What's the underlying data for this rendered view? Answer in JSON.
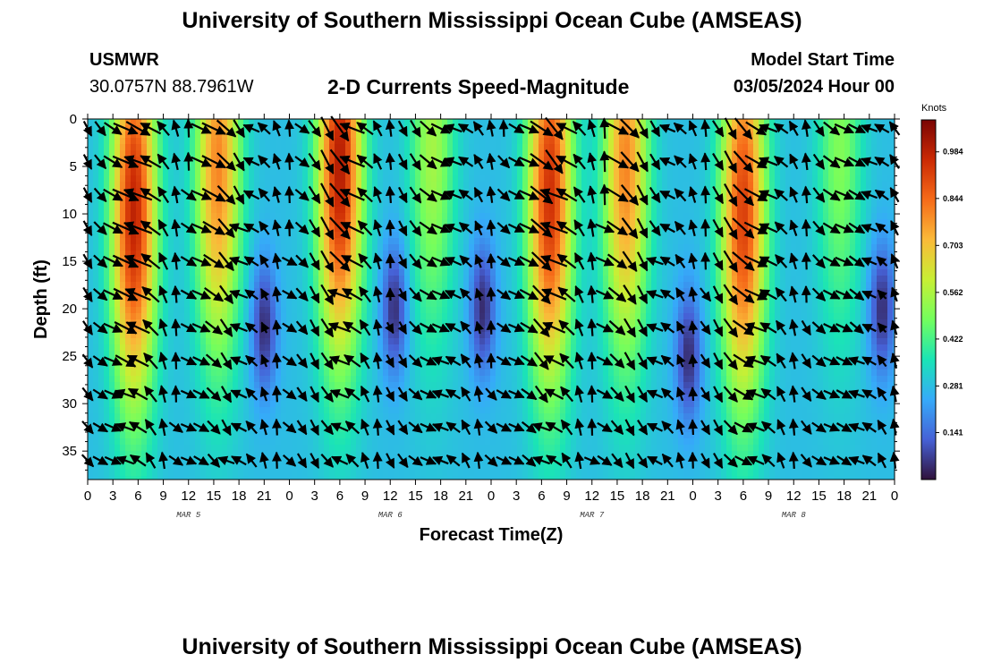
{
  "header": {
    "title": "University of Southern Mississippi Ocean Cube (AMSEAS)",
    "station": "USMWR",
    "coordinates": "30.0757N  88.7961W",
    "subtitle": "2-D Currents Speed-Magnitude",
    "model_start_label": "Model Start Time",
    "model_start_value": "03/05/2024 Hour 00"
  },
  "footer": {
    "title": "University of Southern Mississippi Ocean Cube (AMSEAS)"
  },
  "chart_data": {
    "type": "heatmap",
    "title": "2-D Currents Speed-Magnitude",
    "xlabel": "Forecast Time(Z)",
    "ylabel": "Depth (ft)",
    "x_range_hours": [
      0,
      96
    ],
    "y_range_ft": [
      0,
      38
    ],
    "x_tick_labels": [
      "0",
      "3",
      "6",
      "9",
      "12",
      "15",
      "18",
      "21",
      "0",
      "3",
      "6",
      "9",
      "12",
      "15",
      "18",
      "21",
      "0",
      "3",
      "6",
      "9",
      "12",
      "15",
      "18",
      "21",
      "0",
      "3",
      "6",
      "9",
      "12",
      "15",
      "18",
      "21",
      "0"
    ],
    "y_ticks": [
      0,
      5,
      10,
      15,
      20,
      25,
      30,
      35
    ],
    "date_labels": [
      {
        "hour": 12,
        "label": "MAR 5"
      },
      {
        "hour": 36,
        "label": "MAR 6"
      },
      {
        "hour": 60,
        "label": "MAR 7"
      },
      {
        "hour": 84,
        "label": "MAR 8"
      }
    ],
    "colorbar": {
      "unit": "Knots",
      "min": 0.0,
      "max": 1.08,
      "ticks": [
        0.141,
        0.281,
        0.422,
        0.562,
        0.703,
        0.844,
        0.984
      ],
      "tick_labels": [
        "0.141",
        "0.281",
        "0.422",
        "0.562",
        "0.703",
        "0.844",
        "0.984"
      ],
      "colors": [
        "#30123b",
        "#4661d6",
        "#36aaf9",
        "#1ae4b6",
        "#72fe5e",
        "#c8ef34",
        "#faba39",
        "#f66b19",
        "#cb2a04",
        "#7a0403"
      ]
    },
    "speed_peaks": [
      {
        "hour": 5.5,
        "depth_ft": 10,
        "speed": 0.98
      },
      {
        "hour": 15.5,
        "depth_ft": 5,
        "speed": 0.8
      },
      {
        "hour": 30.0,
        "depth_ft": 5,
        "speed": 1.0
      },
      {
        "hour": 41.0,
        "depth_ft": 3,
        "speed": 0.55
      },
      {
        "hour": 55.0,
        "depth_ft": 8,
        "speed": 0.95
      },
      {
        "hour": 64.0,
        "depth_ft": 5,
        "speed": 0.8
      },
      {
        "hour": 78.0,
        "depth_ft": 10,
        "speed": 0.92
      },
      {
        "hour": 89.5,
        "depth_ft": 3,
        "speed": 0.5
      }
    ],
    "speed_minima": [
      {
        "hour": 21.0,
        "depth_ft": 22,
        "speed": 0.05
      },
      {
        "hour": 36.5,
        "depth_ft": 20,
        "speed": 0.0
      },
      {
        "hour": 47.0,
        "depth_ft": 20,
        "speed": 0.1
      },
      {
        "hour": 71.5,
        "depth_ft": 25,
        "speed": 0.1
      },
      {
        "hour": 94.5,
        "depth_ft": 20,
        "speed": 0.0
      }
    ]
  }
}
